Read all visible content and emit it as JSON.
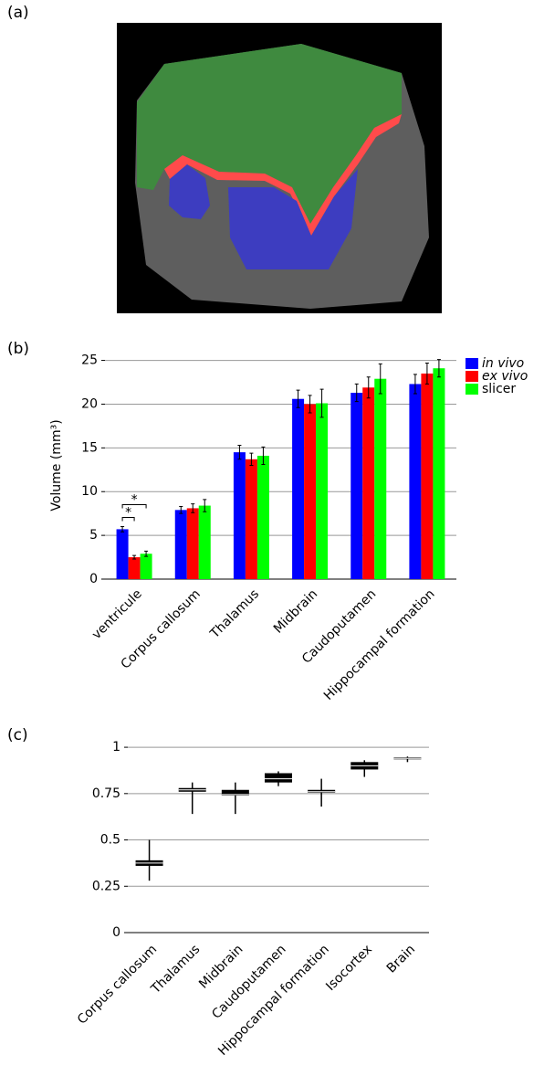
{
  "panel_labels": [
    "(a)",
    "(b)",
    "(c)"
  ],
  "chart_data": [
    {
      "type": "bar",
      "ylabel": "Volume (mm³)",
      "categories": [
        "ventricule",
        "Corpus callosum",
        "Thalamus",
        "Midbrain",
        "Caudoputamen",
        "Hippocampal formation"
      ],
      "series": [
        {
          "name": "in vivo",
          "color": "#0000ff",
          "values": [
            5.7,
            7.9,
            14.5,
            20.6,
            21.3,
            22.3
          ],
          "errors": [
            0.3,
            0.4,
            0.8,
            1.0,
            1.0,
            1.1
          ]
        },
        {
          "name": "ex vivo",
          "color": "#ff0000",
          "values": [
            2.5,
            8.1,
            13.7,
            20.0,
            21.9,
            23.5
          ],
          "errors": [
            0.2,
            0.5,
            0.7,
            1.0,
            1.2,
            1.2
          ]
        },
        {
          "name": "slicer",
          "color": "#00ff00",
          "values": [
            2.9,
            8.4,
            14.1,
            20.1,
            22.9,
            24.1
          ],
          "errors": [
            0.3,
            0.7,
            1.0,
            1.6,
            1.7,
            1.0
          ]
        }
      ],
      "annotations": [
        "*",
        "*"
      ],
      "ylim": [
        0,
        26
      ],
      "yticks": [
        0,
        5,
        10,
        15,
        20,
        25
      ],
      "grid": true,
      "legend": "right"
    },
    {
      "type": "box",
      "categories": [
        "Corpus callosum",
        "Thalamus",
        "Midbrain",
        "Caudoputamen",
        "Hippocampal formation",
        "Isocortex",
        "Brain"
      ],
      "boxes": [
        {
          "min": 0.28,
          "q1": 0.36,
          "median": 0.375,
          "q3": 0.39,
          "max": 0.5
        },
        {
          "min": 0.64,
          "q1": 0.76,
          "median": 0.77,
          "q3": 0.78,
          "max": 0.81
        },
        {
          "min": 0.64,
          "q1": 0.74,
          "median": 0.745,
          "q3": 0.77,
          "max": 0.81
        },
        {
          "min": 0.79,
          "q1": 0.81,
          "median": 0.83,
          "q3": 0.86,
          "max": 0.87
        },
        {
          "min": 0.68,
          "q1": 0.755,
          "median": 0.76,
          "q3": 0.77,
          "max": 0.83
        },
        {
          "min": 0.84,
          "q1": 0.88,
          "median": 0.9,
          "q3": 0.92,
          "max": 0.93
        },
        {
          "min": 0.92,
          "q1": 0.935,
          "median": 0.94,
          "q3": 0.945,
          "max": 0.95
        }
      ],
      "color": "#000000",
      "ylim": [
        0,
        1.03
      ],
      "yticks": [
        0,
        0.25,
        0.5,
        0.75,
        1
      ],
      "grid": true
    }
  ]
}
